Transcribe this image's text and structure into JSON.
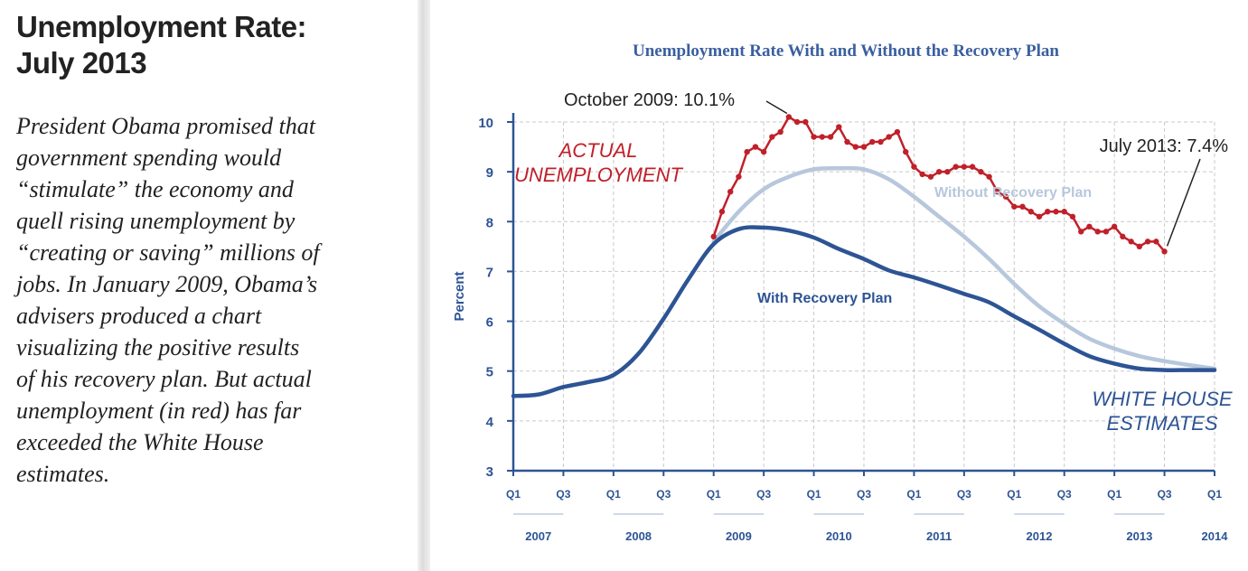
{
  "article": {
    "headline_lines": [
      "Unemployment Rate:",
      "July 2013"
    ],
    "body_lines": [
      "President Obama promised that",
      "government spending would",
      "“stimulate” the economy and",
      "quell rising unemployment by",
      "“creating or saving” millions of",
      "jobs. In January 2009, Obama’s",
      "advisers produced a chart",
      "visualizing the positive results",
      "of his recovery plan. But actual",
      "unemployment (in red) has far",
      "exceeded the White House",
      "estimates."
    ]
  },
  "colors": {
    "actual": "#c0202a",
    "with_plan": "#2d5494",
    "without_plan": "#b7c7dc",
    "axis": "#2d5494",
    "grid": "#c9c9c9",
    "title": "#3a5fa0",
    "label_text": "#222222"
  },
  "chart_data": {
    "type": "line",
    "title": "Unemployment Rate With and Without the Recovery Plan",
    "ylabel": "Percent",
    "xlabel": "",
    "ylim": [
      3,
      10
    ],
    "xlim": [
      2007.0,
      2014.0
    ],
    "yticks": [
      3,
      4,
      5,
      6,
      7,
      8,
      9,
      10
    ],
    "quarter_ticks": [
      {
        "x": 2007.0,
        "label": "Q1"
      },
      {
        "x": 2007.5,
        "label": "Q3"
      },
      {
        "x": 2008.0,
        "label": "Q1"
      },
      {
        "x": 2008.5,
        "label": "Q3"
      },
      {
        "x": 2009.0,
        "label": "Q1"
      },
      {
        "x": 2009.5,
        "label": "Q3"
      },
      {
        "x": 2010.0,
        "label": "Q1"
      },
      {
        "x": 2010.5,
        "label": "Q3"
      },
      {
        "x": 2011.0,
        "label": "Q1"
      },
      {
        "x": 2011.5,
        "label": "Q3"
      },
      {
        "x": 2012.0,
        "label": "Q1"
      },
      {
        "x": 2012.5,
        "label": "Q3"
      },
      {
        "x": 2013.0,
        "label": "Q1"
      },
      {
        "x": 2013.5,
        "label": "Q3"
      },
      {
        "x": 2014.0,
        "label": "Q1"
      }
    ],
    "year_labels": [
      {
        "from": 2007.0,
        "to": 2007.5,
        "label": "2007"
      },
      {
        "from": 2008.0,
        "to": 2008.5,
        "label": "2008"
      },
      {
        "from": 2009.0,
        "to": 2009.5,
        "label": "2009"
      },
      {
        "from": 2010.0,
        "to": 2010.5,
        "label": "2010"
      },
      {
        "from": 2011.0,
        "to": 2011.5,
        "label": "2011"
      },
      {
        "from": 2012.0,
        "to": 2012.5,
        "label": "2012"
      },
      {
        "from": 2013.0,
        "to": 2013.5,
        "label": "2013"
      },
      {
        "from": 2014.0,
        "to": 2014.0,
        "label": "2014"
      }
    ],
    "series": [
      {
        "name": "Without Recovery Plan",
        "key": "without",
        "x": [
          2009.0,
          2009.25,
          2009.5,
          2009.75,
          2010.0,
          2010.25,
          2010.5,
          2010.75,
          2011.0,
          2011.25,
          2011.5,
          2011.75,
          2012.0,
          2012.25,
          2012.5,
          2012.75,
          2013.0,
          2013.25,
          2013.5,
          2013.75,
          2014.0
        ],
        "values": [
          7.6,
          8.2,
          8.65,
          8.9,
          9.05,
          9.07,
          9.05,
          8.85,
          8.5,
          8.1,
          7.7,
          7.25,
          6.75,
          6.3,
          5.95,
          5.65,
          5.45,
          5.3,
          5.2,
          5.12,
          5.05
        ]
      },
      {
        "name": "With Recovery Plan",
        "key": "with",
        "x": [
          2007.0,
          2007.25,
          2007.5,
          2007.75,
          2008.0,
          2008.25,
          2008.5,
          2008.75,
          2009.0,
          2009.25,
          2009.5,
          2009.75,
          2010.0,
          2010.25,
          2010.5,
          2010.75,
          2011.0,
          2011.25,
          2011.5,
          2011.75,
          2012.0,
          2012.25,
          2012.5,
          2012.75,
          2013.0,
          2013.25,
          2013.5,
          2013.75,
          2014.0
        ],
        "values": [
          4.5,
          4.53,
          4.68,
          4.78,
          4.92,
          5.35,
          6.05,
          6.85,
          7.55,
          7.85,
          7.88,
          7.82,
          7.68,
          7.45,
          7.25,
          7.02,
          6.88,
          6.72,
          6.55,
          6.38,
          6.1,
          5.83,
          5.55,
          5.3,
          5.15,
          5.05,
          5.02,
          5.02,
          5.02
        ]
      },
      {
        "name": "Actual Unemployment",
        "key": "actual",
        "x": [
          2009.0,
          2009.083,
          2009.167,
          2009.25,
          2009.333,
          2009.417,
          2009.5,
          2009.583,
          2009.667,
          2009.75,
          2009.833,
          2009.917,
          2010.0,
          2010.083,
          2010.167,
          2010.25,
          2010.333,
          2010.417,
          2010.5,
          2010.583,
          2010.667,
          2010.75,
          2010.833,
          2010.917,
          2011.0,
          2011.083,
          2011.167,
          2011.25,
          2011.333,
          2011.417,
          2011.5,
          2011.583,
          2011.667,
          2011.75,
          2011.833,
          2011.917,
          2012.0,
          2012.083,
          2012.167,
          2012.25,
          2012.333,
          2012.417,
          2012.5,
          2012.583,
          2012.667,
          2012.75,
          2012.833,
          2012.917,
          2013.0,
          2013.083,
          2013.167,
          2013.25,
          2013.333,
          2013.417,
          2013.5
        ],
        "values": [
          7.7,
          8.2,
          8.6,
          8.9,
          9.4,
          9.5,
          9.4,
          9.7,
          9.8,
          10.1,
          10.0,
          10.0,
          9.7,
          9.7,
          9.7,
          9.9,
          9.6,
          9.5,
          9.5,
          9.6,
          9.6,
          9.7,
          9.8,
          9.4,
          9.1,
          8.95,
          8.9,
          9.0,
          9.0,
          9.1,
          9.1,
          9.1,
          9.0,
          8.9,
          8.6,
          8.5,
          8.3,
          8.3,
          8.2,
          8.1,
          8.2,
          8.2,
          8.2,
          8.1,
          7.8,
          7.9,
          7.8,
          7.8,
          7.9,
          7.7,
          7.6,
          7.5,
          7.6,
          7.6,
          7.4
        ]
      }
    ],
    "annotations": {
      "peak": "October 2009: 10.1%",
      "latest": "July 2013: 7.4%",
      "actual_label": [
        "ACTUAL",
        "UNEMPLOYMENT"
      ],
      "with_label": "With Recovery Plan",
      "without_label": "Without Recovery Plan",
      "estimates_label": [
        "WHITE HOUSE",
        "ESTIMATES"
      ]
    }
  }
}
